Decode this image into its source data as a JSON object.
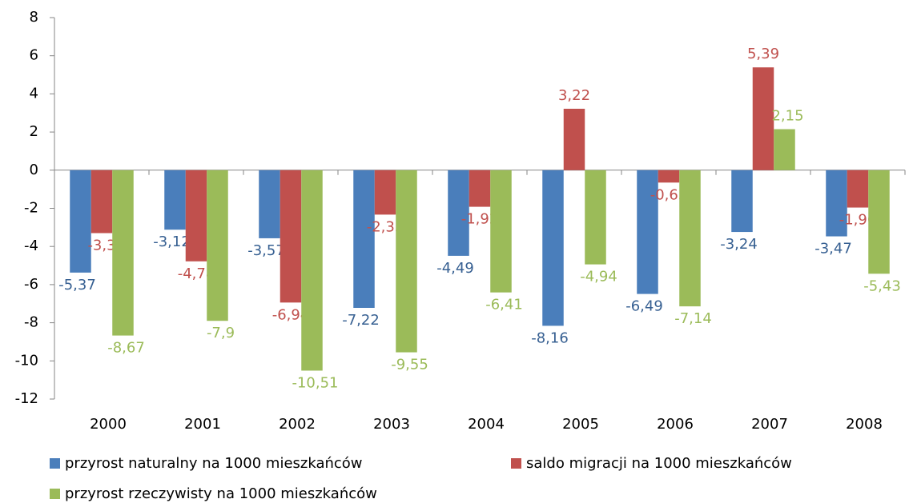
{
  "chart_data": {
    "type": "bar",
    "categories": [
      "2000",
      "2001",
      "2002",
      "2003",
      "2004",
      "2005",
      "2006",
      "2007",
      "2008"
    ],
    "series": [
      {
        "name": "przyrost naturalny na 1000 mieszkańców",
        "color": "#4a7ebb",
        "label_color": "#376092",
        "values": [
          -5.37,
          -3.12,
          -3.57,
          -7.22,
          -4.49,
          -8.16,
          -6.49,
          -3.24,
          -3.47
        ],
        "value_labels": [
          "-5,37",
          "-3,12",
          "-3,57",
          "-7,22",
          "-4,49",
          "-8,16",
          "-6,49",
          "-3,24",
          "-3,47"
        ]
      },
      {
        "name": "saldo migracji na 1000 mieszkańców",
        "color": "#c0504d",
        "label_color": "#c0504d",
        "values": [
          -3.3,
          -4.78,
          -6.94,
          -2.33,
          -1.92,
          3.22,
          -0.65,
          5.39,
          -1.96
        ],
        "value_labels": [
          "-3,3",
          "-4,78",
          "-6,94",
          "-2,33",
          "-1,92",
          "3,22",
          "-0,65",
          "5,39",
          "-1,96"
        ]
      },
      {
        "name": "przyrost rzeczywisty na 1000 mieszkańców",
        "color": "#9bbb59",
        "label_color": "#9bbb59",
        "values": [
          -8.67,
          -7.9,
          -10.51,
          -9.55,
          -6.41,
          -4.94,
          -7.14,
          2.15,
          -5.43
        ],
        "value_labels": [
          "-8,67",
          "-7,9",
          "-10,51",
          "-9,55",
          "-6,41",
          "-4,94",
          "-7,14",
          "2,15",
          "-5,43"
        ]
      }
    ],
    "ylim": [
      -12,
      8
    ],
    "yticks": [
      -12,
      -10,
      -8,
      -6,
      -4,
      -2,
      0,
      2,
      4,
      6,
      8
    ],
    "grid": false
  }
}
